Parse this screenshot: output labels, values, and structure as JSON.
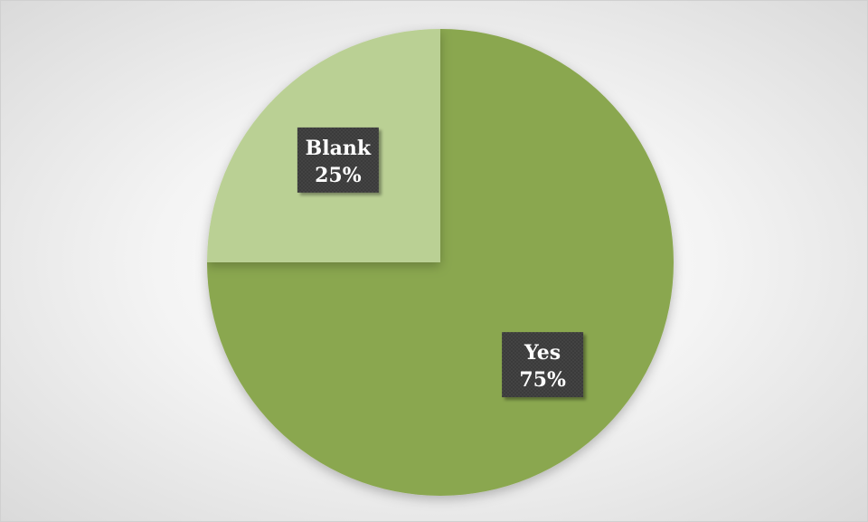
{
  "chart_data": {
    "type": "pie",
    "categories": [
      "Yes",
      "Blank"
    ],
    "values": [
      75,
      25
    ],
    "value_labels": [
      "75%",
      "25%"
    ],
    "colors": [
      "#8aa74f",
      "#bad094"
    ],
    "label_background": "#3a3a3a",
    "title": "",
    "legend": "none"
  }
}
